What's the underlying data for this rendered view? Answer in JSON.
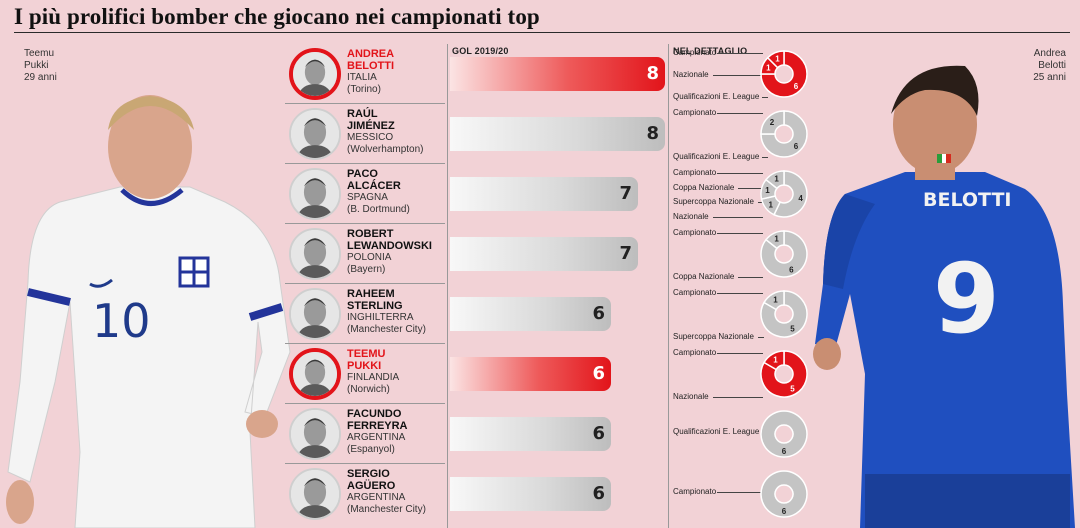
{
  "title": "I più prolifici bomber che giocano nei campionati top",
  "left_label": {
    "name1": "Teemu",
    "name2": "Pukki",
    "age": "29 anni"
  },
  "right_label": {
    "name1": "Andrea",
    "name2": "Belotti",
    "age": "25 anni"
  },
  "jersey_right": {
    "name": "BELOTTI",
    "number": "9"
  },
  "jersey_left": {
    "number": "10"
  },
  "columns": {
    "goals": "GOL 2019/20",
    "detail": "NEL DETTAGLIO"
  },
  "colors": {
    "highlight": "#e2141a",
    "background": "#f2d2d6",
    "bar_grey": "#c4c4c4"
  },
  "chart_data": {
    "type": "bar",
    "title": "I più prolifici bomber che giocano nei campionati top",
    "xlabel": "GOL 2019/20",
    "categories": [
      "Andrea Belotti",
      "Raúl Jiménez",
      "Paco Alcácer",
      "Robert Lewandowski",
      "Raheem Sterling",
      "Teemu Pukki",
      "Facundo Ferreyra",
      "Sergio Agüero"
    ],
    "values": [
      8,
      8,
      7,
      7,
      6,
      6,
      6,
      6
    ],
    "xlim": [
      0,
      8
    ],
    "highlighted": [
      "Andrea Belotti",
      "Teemu Pukki"
    ]
  },
  "players": [
    {
      "line1": "ANDREA",
      "line2": "BELOTTI",
      "country": "ITALIA",
      "club": "(Torino)",
      "goals": 8,
      "highlight": true,
      "detail": [
        {
          "label": "Campionato",
          "value": 6
        },
        {
          "label": "Nazionale",
          "value": 1
        },
        {
          "label": "Qualificazioni E. League",
          "value": 1
        }
      ]
    },
    {
      "line1": "RAÚL",
      "line2": "JIMÉNEZ",
      "country": "MESSICO",
      "club": "(Wolverhampton)",
      "goals": 8,
      "highlight": false,
      "detail": [
        {
          "label": "Campionato",
          "value": 6
        },
        {
          "label": "Qualificazioni E. League",
          "value": 2
        }
      ]
    },
    {
      "line1": "PACO",
      "line2": "ALCÁCER",
      "country": "SPAGNA",
      "club": "(B. Dortmund)",
      "goals": 7,
      "highlight": false,
      "detail": [
        {
          "label": "Campionato",
          "value": 4
        },
        {
          "label": "Coppa Nazionale",
          "value": 1
        },
        {
          "label": "Supercoppa Nazionale",
          "value": 1
        },
        {
          "label": "Nazionale",
          "value": 1
        }
      ]
    },
    {
      "line1": "ROBERT",
      "line2": "LEWANDOWSKI",
      "country": "POLONIA",
      "club": "(Bayern)",
      "goals": 7,
      "highlight": false,
      "detail": [
        {
          "label": "Campionato",
          "value": 6
        },
        {
          "label": "Coppa Nazionale",
          "value": 1
        }
      ]
    },
    {
      "line1": "RAHEEM",
      "line2": "STERLING",
      "country": "INGHILTERRA",
      "club": "(Manchester City)",
      "goals": 6,
      "highlight": false,
      "detail": [
        {
          "label": "Campionato",
          "value": 5
        },
        {
          "label": "Supercoppa Nazionale",
          "value": 1
        }
      ]
    },
    {
      "line1": "TEEMU",
      "line2": "PUKKI",
      "country": "FINLANDIA",
      "club": "(Norwich)",
      "goals": 6,
      "highlight": true,
      "detail": [
        {
          "label": "Campionato",
          "value": 5
        },
        {
          "label": "Nazionale",
          "value": 1
        }
      ]
    },
    {
      "line1": "FACUNDO",
      "line2": "FERREYRA",
      "country": "ARGENTINA",
      "club": "(Espanyol)",
      "goals": 6,
      "highlight": false,
      "detail": [
        {
          "label": "Qualificazioni E. League",
          "value": 6
        }
      ]
    },
    {
      "line1": "SERGIO",
      "line2": "AGÜERO",
      "country": "ARGENTINA",
      "club": "(Manchester City)",
      "goals": 6,
      "highlight": false,
      "detail": [
        {
          "label": "Campionato",
          "value": 6
        }
      ]
    }
  ]
}
